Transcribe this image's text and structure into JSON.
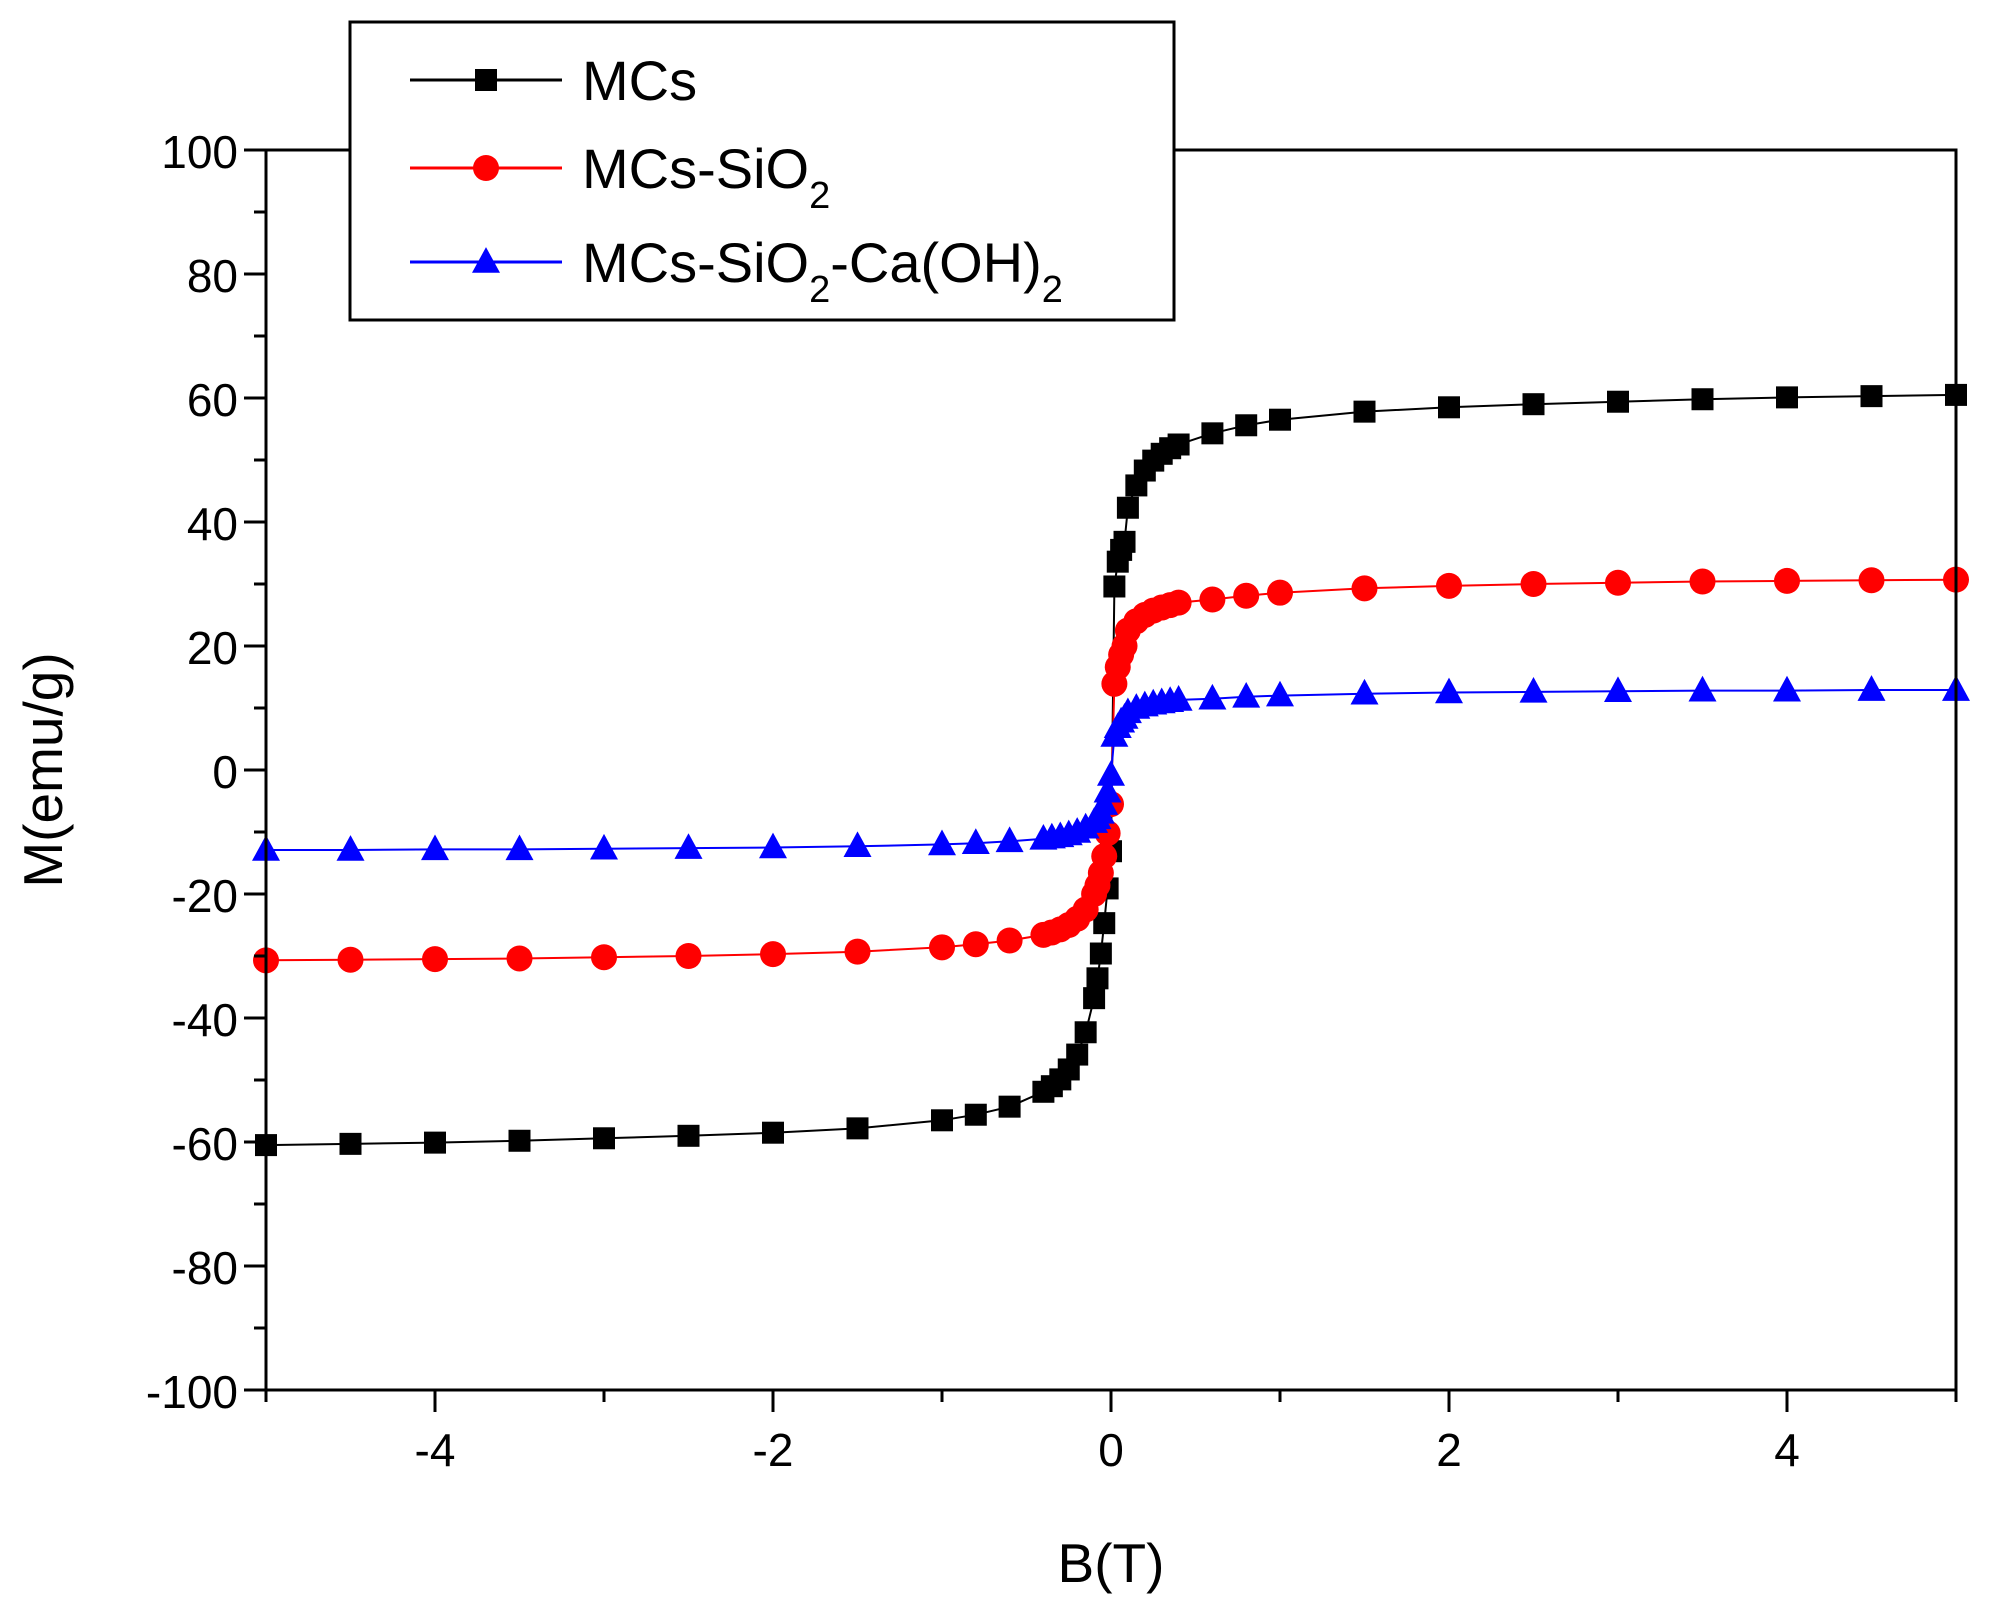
{
  "chart_data": {
    "type": "line",
    "title": "",
    "xlabel": "B(T)",
    "ylabel": "M(emu/g)",
    "xlim": [
      -5,
      5
    ],
    "ylim": [
      -100,
      100
    ],
    "x_ticks": [
      -4,
      -2,
      0,
      2,
      4
    ],
    "x_tick_labels": [
      "-4",
      "-2",
      "0",
      "2",
      "4"
    ],
    "y_ticks": [
      -100,
      -80,
      -60,
      -40,
      -20,
      0,
      20,
      40,
      60,
      80,
      100
    ],
    "y_tick_labels": [
      "-100",
      "-80",
      "-60",
      "-40",
      "-20",
      "0",
      "20",
      "40",
      "60",
      "80",
      "100"
    ],
    "grid": false,
    "legend_position": "top-left",
    "series": [
      {
        "name": "MCs",
        "legend": {
          "main": "MCs",
          "parts": []
        },
        "marker": "square",
        "color": "#000000",
        "Ms": 60.5,
        "x": [
          -5,
          -4.5,
          -4,
          -3.5,
          -3,
          -2.5,
          -2,
          -1.5,
          -1,
          -0.8,
          -0.6,
          -0.4,
          -0.35,
          -0.3,
          -0.25,
          -0.2,
          -0.15,
          -0.1,
          -0.08,
          -0.06,
          -0.04,
          -0.02,
          0,
          0.02,
          0.04,
          0.06,
          0.08,
          0.1,
          0.15,
          0.2,
          0.25,
          0.3,
          0.35,
          0.4,
          0.6,
          0.8,
          1,
          1.5,
          2,
          2.5,
          3,
          3.5,
          4,
          4.5,
          5
        ],
        "y": [
          -60.5,
          -60.3,
          -60.1,
          -59.8,
          -59.4,
          -59,
          -58.5,
          -57.8,
          -56.5,
          -55.6,
          -54.3,
          -51.9,
          -51,
          -49.9,
          -48.3,
          -45.9,
          -42.3,
          -36.8,
          -33.6,
          -29.6,
          -24.7,
          -19.1,
          -13.1,
          29.6,
          33.6,
          35.5,
          36.8,
          42.3,
          45.9,
          48.3,
          49.9,
          51,
          51.9,
          52.5,
          54.3,
          55.6,
          56.5,
          57.8,
          58.5,
          59,
          59.4,
          59.8,
          60.1,
          60.3,
          60.5
        ]
      },
      {
        "name": "MCs-SiO2",
        "legend": {
          "main": "MCs-SiO",
          "parts": [
            {
              "sub": "2",
              "text": ""
            }
          ]
        },
        "marker": "circle",
        "color": "#ff0000",
        "Ms": 30.7,
        "x": [
          -5,
          -4.5,
          -4,
          -3.5,
          -3,
          -2.5,
          -2,
          -1.5,
          -1,
          -0.8,
          -0.6,
          -0.4,
          -0.35,
          -0.3,
          -0.25,
          -0.2,
          -0.15,
          -0.1,
          -0.08,
          -0.06,
          -0.04,
          -0.02,
          0,
          0.02,
          0.04,
          0.06,
          0.08,
          0.1,
          0.15,
          0.2,
          0.25,
          0.3,
          0.35,
          0.4,
          0.6,
          0.8,
          1,
          1.5,
          2,
          2.5,
          3,
          3.5,
          4,
          4.5,
          5
        ],
        "y": [
          -30.7,
          -30.6,
          -30.5,
          -30.4,
          -30.2,
          -30,
          -29.7,
          -29.3,
          -28.6,
          -28.1,
          -27.5,
          -26.6,
          -26.2,
          -25.7,
          -25,
          -24,
          -22.5,
          -20,
          -18.6,
          -16.6,
          -13.9,
          -10.2,
          -5.5,
          13.9,
          16.6,
          18.6,
          20,
          22.5,
          24,
          25,
          25.7,
          26.2,
          26.6,
          27,
          27.5,
          28.1,
          28.6,
          29.3,
          29.7,
          30,
          30.2,
          30.4,
          30.5,
          30.6,
          30.7
        ]
      },
      {
        "name": "MCs-SiO2-Ca(OH)2",
        "legend": {
          "main": "MCs-SiO",
          "parts": [
            {
              "sub": "2",
              "text": "-Ca(OH)"
            },
            {
              "sub": "2",
              "text": ""
            }
          ]
        },
        "marker": "triangle",
        "color": "#0000ff",
        "Ms": 12.9,
        "x": [
          -5,
          -4.5,
          -4,
          -3.5,
          -3,
          -2.5,
          -2,
          -1.5,
          -1,
          -0.8,
          -0.6,
          -0.4,
          -0.35,
          -0.3,
          -0.25,
          -0.2,
          -0.15,
          -0.1,
          -0.08,
          -0.06,
          -0.04,
          -0.02,
          0,
          0.02,
          0.04,
          0.06,
          0.08,
          0.1,
          0.15,
          0.2,
          0.25,
          0.3,
          0.35,
          0.4,
          0.6,
          0.8,
          1,
          1.5,
          2,
          2.5,
          3,
          3.5,
          4,
          4.5,
          5
        ],
        "y": [
          -12.9,
          -12.9,
          -12.8,
          -12.8,
          -12.7,
          -12.6,
          -12.5,
          -12.3,
          -12,
          -11.8,
          -11.5,
          -11.1,
          -10.9,
          -10.7,
          -10.4,
          -10,
          -9.3,
          -8.4,
          -7.8,
          -6.9,
          -5.5,
          -3.5,
          -0.8,
          5.5,
          6.9,
          7.8,
          8.4,
          9.3,
          10,
          10.4,
          10.7,
          10.9,
          11.1,
          11.3,
          11.5,
          11.8,
          12,
          12.3,
          12.5,
          12.6,
          12.7,
          12.8,
          12.8,
          12.9,
          12.9
        ]
      }
    ]
  }
}
